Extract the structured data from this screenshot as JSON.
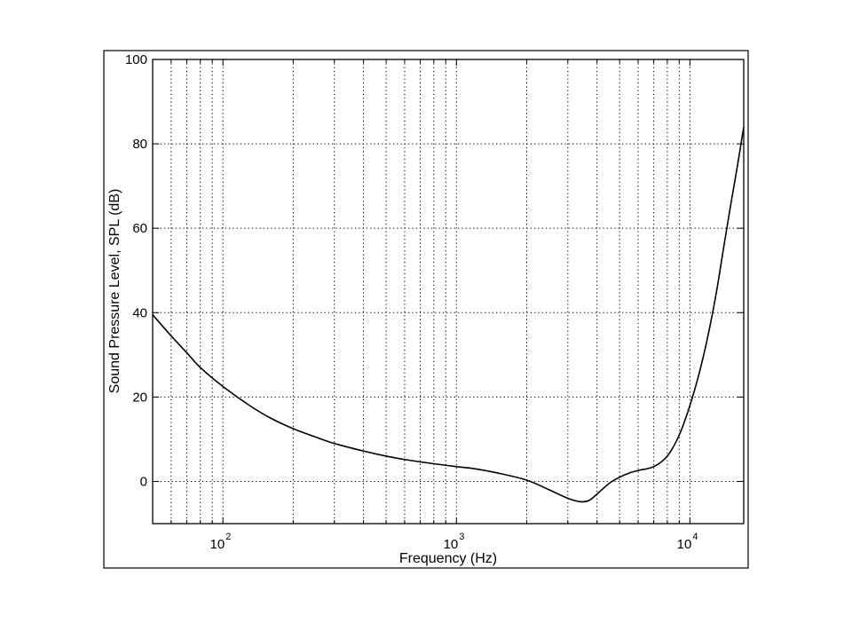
{
  "chart_data": {
    "type": "line",
    "xscale": "log",
    "xlim": [
      50,
      17000
    ],
    "ylim": [
      -10,
      100
    ],
    "xlabel": "Frequency (Hz)",
    "ylabel": "Sound Pressure Level, SPL (dB)",
    "x_ticks": [
      {
        "value": 100,
        "base": "10",
        "exp": "2"
      },
      {
        "value": 1000,
        "base": "10",
        "exp": "3"
      },
      {
        "value": 10000,
        "base": "10",
        "exp": "4"
      }
    ],
    "y_ticks": [
      0,
      20,
      40,
      60,
      80,
      100
    ],
    "grid": true,
    "grid_style": "dotted",
    "line_color": "#000000",
    "series": [
      {
        "x": [
          50,
          60,
          70,
          80,
          100,
          130,
          160,
          200,
          250,
          300,
          400,
          500,
          600,
          800,
          1000,
          1200,
          1500,
          2000,
          2500,
          3000,
          3400,
          3700,
          4000,
          4500,
          5000,
          5500,
          6000,
          7000,
          8000,
          9000,
          10000,
          11000,
          12000,
          13000,
          14000,
          15000,
          16000,
          17000
        ],
        "y": [
          39.5,
          34.5,
          30.5,
          27,
          22.5,
          18,
          15,
          12.5,
          10.5,
          9,
          7.2,
          6,
          5.2,
          4.2,
          3.5,
          3,
          2,
          0.3,
          -2,
          -4,
          -4.8,
          -4.5,
          -3,
          -0.5,
          1,
          2,
          2.6,
          3.5,
          6,
          11,
          18,
          26,
          35,
          45,
          56,
          66,
          75,
          84
        ]
      }
    ]
  }
}
